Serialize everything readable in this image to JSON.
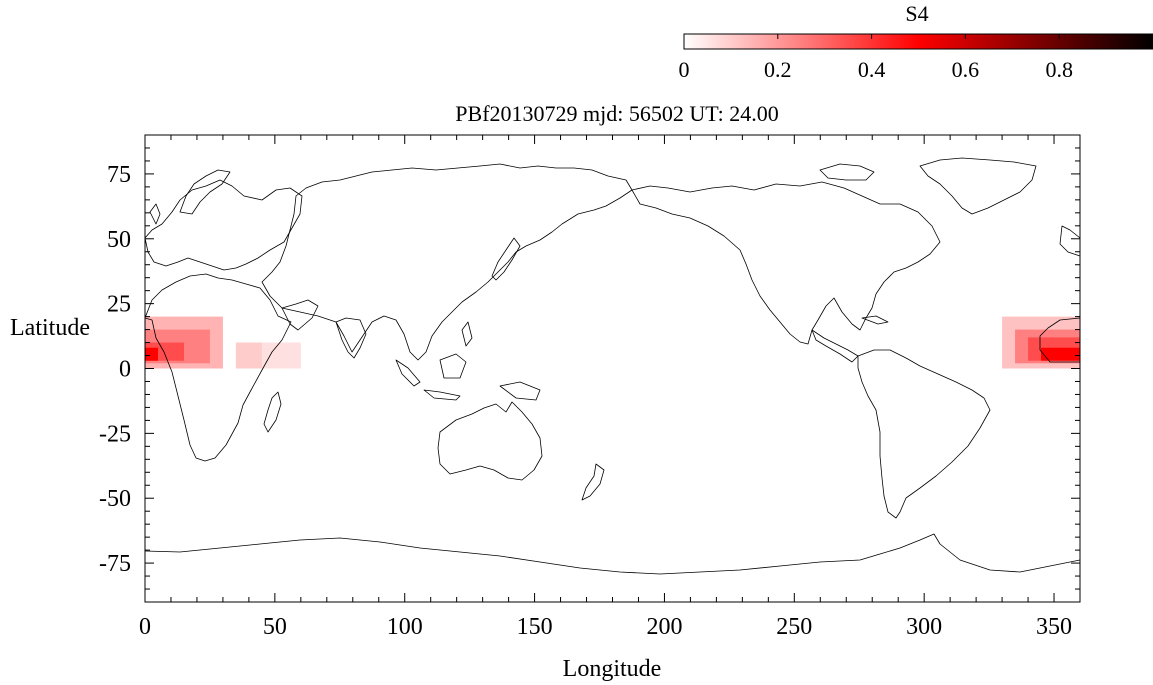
{
  "colorbar": {
    "label": "S4",
    "ticks": [
      "0",
      "0.2",
      "0.4",
      "0.6",
      "0.8"
    ],
    "tick_values": [
      0,
      0.2,
      0.4,
      0.6,
      0.8
    ],
    "range": [
      0,
      1
    ],
    "colors": {
      "low": "#ffffff",
      "mid": "#ff0000",
      "high": "#000000"
    }
  },
  "chart_data": {
    "type": "heatmap",
    "title": "PBf20130729  mjd: 56502  UT:  24.00",
    "xlabel": "Longitude",
    "ylabel": "Latitude",
    "xlim": [
      0,
      360
    ],
    "ylim": [
      -90,
      90
    ],
    "x_ticks": [
      0,
      50,
      100,
      150,
      200,
      250,
      300,
      350
    ],
    "x_tick_labels": [
      "0",
      "50",
      "100",
      "150",
      "200",
      "250",
      "300",
      "350"
    ],
    "y_ticks": [
      75,
      50,
      25,
      0,
      -25,
      -50,
      -75
    ],
    "y_tick_labels": [
      "75",
      "50",
      "25",
      "0",
      "-25",
      "-50",
      "-75"
    ],
    "value_label": "S4",
    "cells": [
      {
        "lon": [
          0,
          30
        ],
        "lat": [
          0,
          20
        ],
        "s4": 0.15
      },
      {
        "lon": [
          0,
          25
        ],
        "lat": [
          2,
          15
        ],
        "s4": 0.25
      },
      {
        "lon": [
          0,
          15
        ],
        "lat": [
          3,
          10
        ],
        "s4": 0.35
      },
      {
        "lon": [
          0,
          5
        ],
        "lat": [
          3,
          8
        ],
        "s4": 0.5
      },
      {
        "lon": [
          35,
          60
        ],
        "lat": [
          0,
          10
        ],
        "s4": 0.06
      },
      {
        "lon": [
          35,
          45
        ],
        "lat": [
          0,
          10
        ],
        "s4": 0.1
      },
      {
        "lon": [
          330,
          360
        ],
        "lat": [
          0,
          20
        ],
        "s4": 0.12
      },
      {
        "lon": [
          335,
          360
        ],
        "lat": [
          2,
          15
        ],
        "s4": 0.25
      },
      {
        "lon": [
          340,
          360
        ],
        "lat": [
          3,
          12
        ],
        "s4": 0.35
      },
      {
        "lon": [
          345,
          360
        ],
        "lat": [
          3,
          8
        ],
        "s4": 0.5
      }
    ]
  }
}
